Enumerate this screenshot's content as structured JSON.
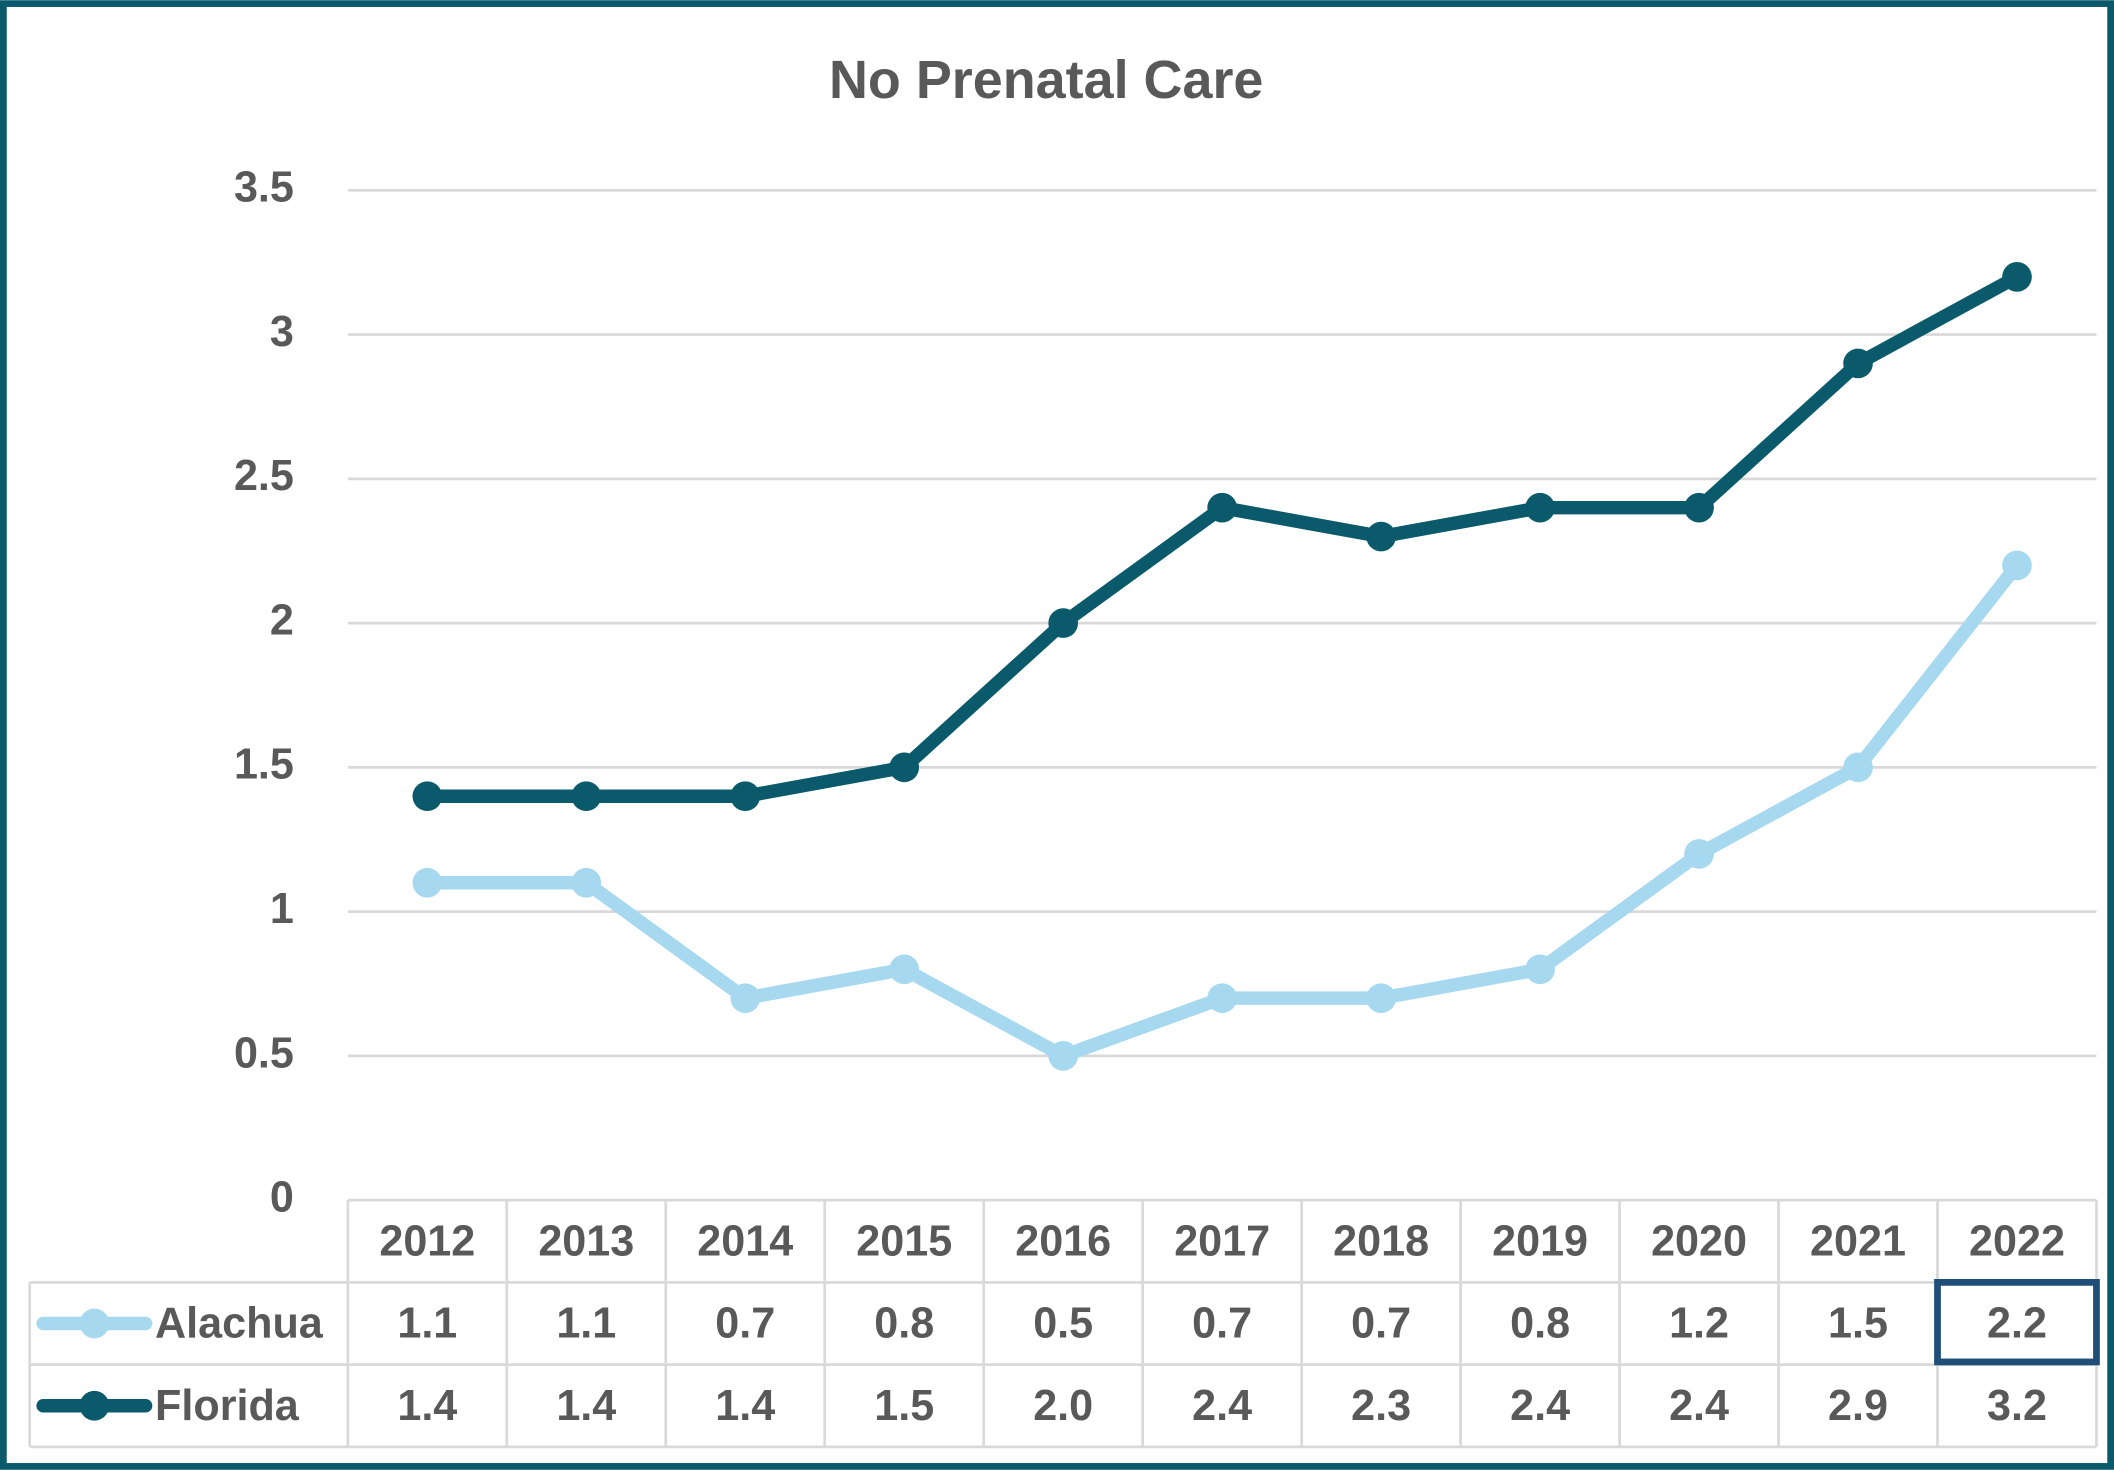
{
  "chart_data": {
    "type": "line",
    "title": "No Prenatal Care",
    "categories": [
      "2012",
      "2013",
      "2014",
      "2015",
      "2016",
      "2017",
      "2018",
      "2019",
      "2020",
      "2021",
      "2022"
    ],
    "series": [
      {
        "name": "Alachua",
        "color": "#a6d8ef",
        "values": [
          1.1,
          1.1,
          0.7,
          0.8,
          0.5,
          0.7,
          0.7,
          0.8,
          1.2,
          1.5,
          2.2
        ]
      },
      {
        "name": "Florida",
        "color": "#0b5a6b",
        "values": [
          1.4,
          1.4,
          1.4,
          1.5,
          2.0,
          2.4,
          2.3,
          2.4,
          2.4,
          2.9,
          3.2
        ],
        "value_labels": [
          "1.4",
          "1.4",
          "1.4",
          "1.5",
          "2.0",
          "2.4",
          "2.3",
          "2.4",
          "2.4",
          "2.9",
          "3.2"
        ]
      }
    ],
    "ylim": [
      0,
      3.5
    ],
    "yticks": [
      0,
      0.5,
      1,
      1.5,
      2,
      2.5,
      3,
      3.5
    ],
    "grid": true,
    "data_table": true
  }
}
